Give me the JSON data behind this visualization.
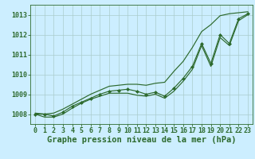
{
  "title": "Graphe pression niveau de la mer (hPa)",
  "bg_color": "#cceeff",
  "grid_color": "#aacccc",
  "line_color": "#2d6a2d",
  "marker_color": "#2d6a2d",
  "x": [
    0,
    1,
    2,
    3,
    4,
    5,
    6,
    7,
    8,
    9,
    10,
    11,
    12,
    13,
    14,
    15,
    16,
    17,
    18,
    19,
    20,
    21,
    22,
    23
  ],
  "y_main": [
    1008.0,
    1008.0,
    1007.9,
    1008.1,
    1008.4,
    1008.6,
    1008.8,
    1009.0,
    1009.15,
    1009.2,
    1009.25,
    1009.15,
    1009.0,
    1009.1,
    1008.9,
    1009.3,
    1009.8,
    1010.4,
    1011.55,
    1010.55,
    1012.0,
    1011.55,
    1012.8,
    1013.05
  ],
  "y_high": [
    1008.05,
    1008.0,
    1008.05,
    1008.25,
    1008.5,
    1008.75,
    1009.0,
    1009.2,
    1009.4,
    1009.45,
    1009.5,
    1009.5,
    1009.45,
    1009.55,
    1009.6,
    1010.15,
    1010.65,
    1011.35,
    1012.15,
    1012.5,
    1012.95,
    1013.05,
    1013.1,
    1013.15
  ],
  "y_low": [
    1008.0,
    1007.85,
    1007.85,
    1008.0,
    1008.3,
    1008.55,
    1008.75,
    1008.9,
    1009.05,
    1009.05,
    1009.05,
    1008.95,
    1008.9,
    1009.0,
    1008.8,
    1009.15,
    1009.65,
    1010.25,
    1011.45,
    1010.4,
    1011.85,
    1011.45,
    1012.7,
    1013.0
  ],
  "ylim": [
    1007.5,
    1013.5
  ],
  "yticks": [
    1008,
    1009,
    1010,
    1011,
    1012,
    1013
  ],
  "xlim": [
    -0.5,
    23.5
  ],
  "xticks": [
    0,
    1,
    2,
    3,
    4,
    5,
    6,
    7,
    8,
    9,
    10,
    11,
    12,
    13,
    14,
    15,
    16,
    17,
    18,
    19,
    20,
    21,
    22,
    23
  ],
  "title_fontsize": 7.5,
  "tick_fontsize": 6.0,
  "figsize": [
    3.2,
    2.0
  ],
  "dpi": 100
}
